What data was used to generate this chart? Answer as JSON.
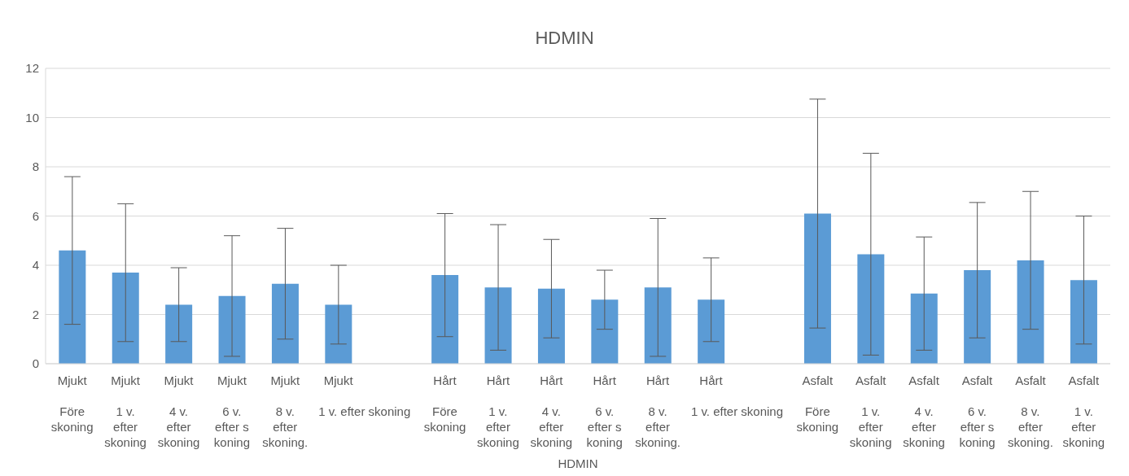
{
  "chart_data": {
    "type": "bar",
    "title": "HDMIN",
    "annotations": [
      "HDMIN"
    ],
    "color": "#5b9bd5",
    "categories": [
      "Mjukt\nFöre skoning",
      "Mjukt\n1 v. efter skoning",
      "Mjukt\n4 v. efter skoning",
      "Mjukt\n6 v. efter s koning",
      "Mjukt\n8 v. efter skoning.",
      "Mjukt\n1 v. efter skoning",
      null,
      "Hårt\nFöre skoning",
      "Hårt\n1 v. efter skoning",
      "Hårt\n4 v. efter skoning",
      "Hårt\n6 v. efter s koning",
      "Hårt\n8 v. efter skoning.",
      "Hårt\n1 v. efter skoning",
      null,
      "Asfalt\nFöre skoning",
      "Asfalt\n1 v. efter skoning",
      "Asfalt\n4 v. efter skoning",
      "Asfalt\n6 v. efter s koning",
      "Asfalt\n8 v. efter skoning.",
      "Asfalt\n1 v. efter skoning"
    ],
    "values": [
      4.6,
      3.7,
      2.4,
      2.75,
      3.25,
      2.4,
      null,
      3.6,
      3.1,
      3.05,
      2.6,
      3.1,
      2.6,
      null,
      6.1,
      4.45,
      2.85,
      3.8,
      4.2,
      3.4
    ],
    "errors": [
      3.0,
      2.8,
      1.5,
      2.45,
      2.25,
      1.6,
      null,
      2.5,
      2.55,
      2.0,
      1.2,
      2.8,
      1.7,
      null,
      4.65,
      4.1,
      2.3,
      2.75,
      2.8,
      2.6
    ],
    "ylim": [
      0,
      12
    ],
    "yticks": [
      0,
      2,
      4,
      6,
      8,
      10,
      12
    ],
    "grid": "y"
  }
}
